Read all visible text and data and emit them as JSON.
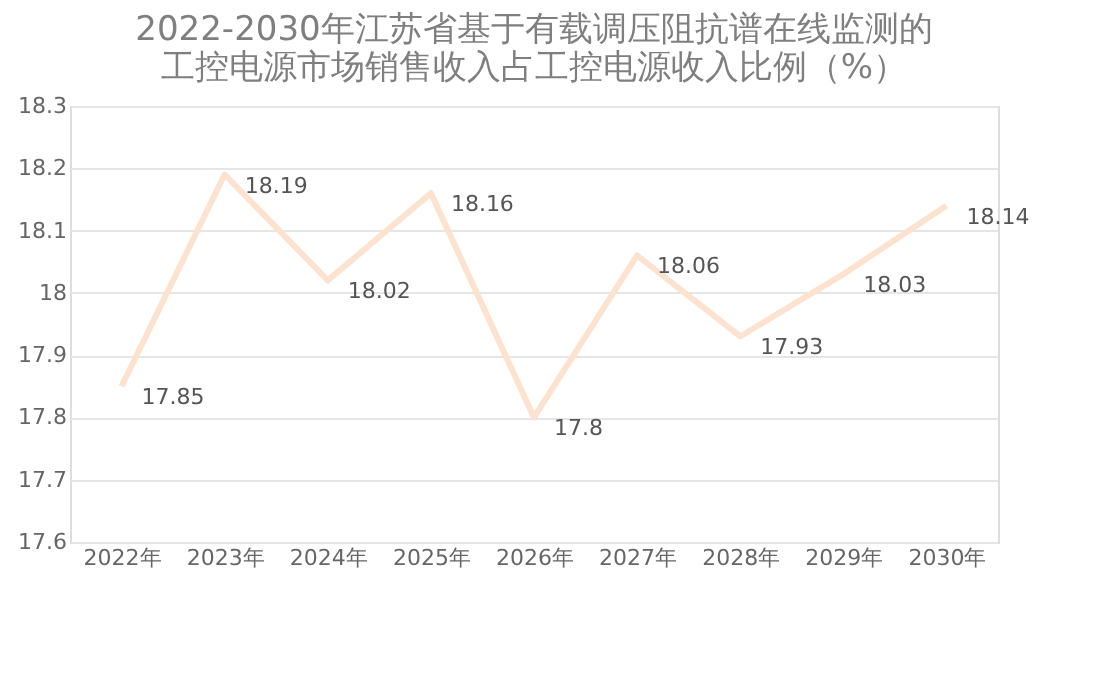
{
  "chart_data": {
    "type": "line",
    "title": [
      "2022-2030年江苏省基于有载调压阻抗谱在线监测的",
      "工控电源市场销售收入占工控电源收入比例（%）"
    ],
    "categories": [
      "2022年",
      "2023年",
      "2024年",
      "2025年",
      "2026年",
      "2027年",
      "2028年",
      "2029年",
      "2030年"
    ],
    "series": [
      {
        "color": "#fde2cf",
        "values": [
          17.85,
          18.19,
          18.02,
          18.16,
          17.8,
          18.06,
          17.93,
          18.03,
          18.14
        ]
      }
    ],
    "ylim": [
      17.6,
      18.3
    ],
    "yticks": [
      17.6,
      17.7,
      17.8,
      17.9,
      18,
      18.1,
      18.2,
      18.3
    ],
    "grid": "y",
    "data_labels": true,
    "marker": "none",
    "line_style": "solid"
  }
}
